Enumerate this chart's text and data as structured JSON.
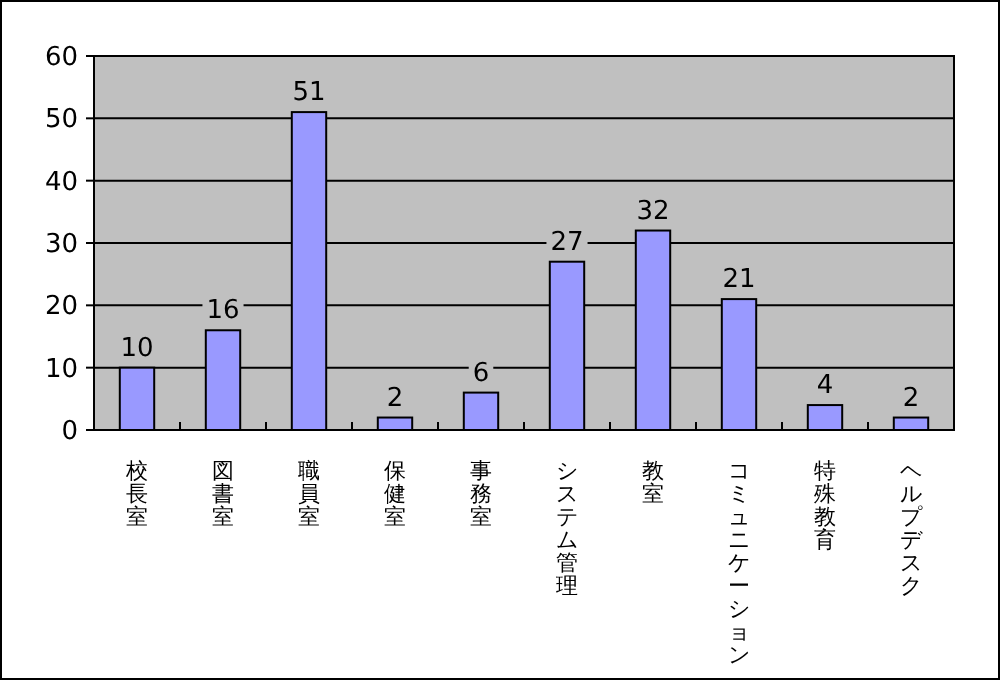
{
  "chart_data": {
    "type": "bar",
    "categories": [
      "校長室",
      "図書室",
      "職員室",
      "保健室",
      "事務室",
      "システム管理",
      "教室",
      "コミュニケーション",
      "特殊教育",
      "ヘルプデスク"
    ],
    "values": [
      10,
      16,
      51,
      2,
      6,
      27,
      32,
      21,
      4,
      2
    ],
    "color": "#9999ff",
    "ylim": [
      0,
      60
    ],
    "yticks": [
      0,
      10,
      20,
      30,
      40,
      50,
      60
    ],
    "grid": "y",
    "data_labels": true
  }
}
